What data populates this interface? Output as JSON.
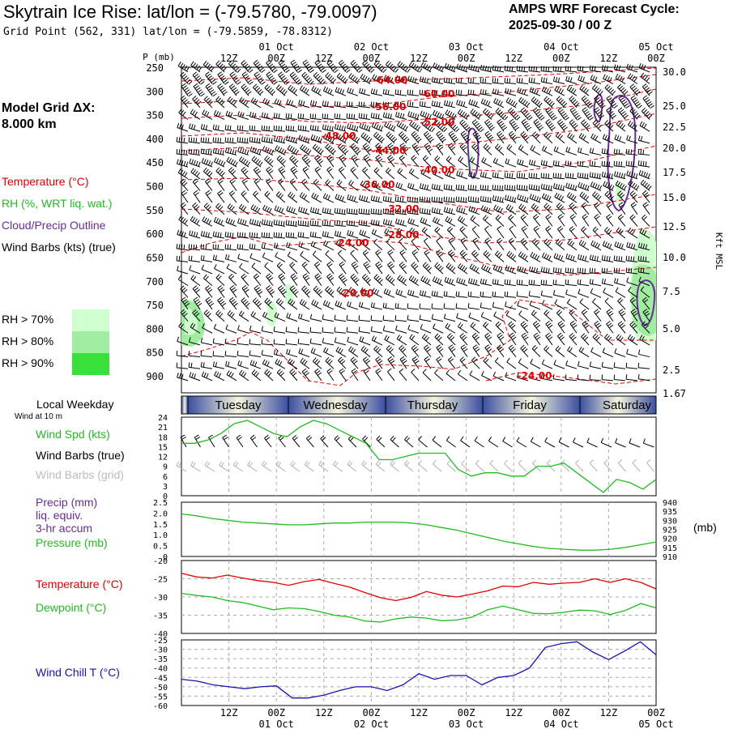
{
  "header": {
    "title": "Skytrain Ice Rise:  lat/lon = (-79.5780, -79.0097)",
    "subtitle": "Grid Point (562, 331) lat/lon = (-79.5859, -78.8312)",
    "cycle_line1": "AMPS WRF Forecast Cycle:",
    "cycle_line2": "2025-09-30 / 00  Z",
    "grid_line1": "Model Grid ΔX:",
    "grid_line2": " 8.000 km"
  },
  "legend": {
    "temperature": "Temperature (°C)",
    "rh": "RH (%, WRT liq. wat.)",
    "cloud": "Cloud/Precip Outline",
    "wind": "Wind Barbs (kts) (true)",
    "rh_levels": [
      {
        "label": "RH > 70%",
        "color": "#cfffcf"
      },
      {
        "label": "RH > 80%",
        "color": "#a0eca0"
      },
      {
        "label": "RH > 90%",
        "color": "#39e039"
      }
    ],
    "local_weekday": "Local Weekday",
    "wind_at_10m": "Wind at 10 m"
  },
  "colors": {
    "temperature": "#e00000",
    "rh": "#22bb22",
    "cloud": "#6a2a9a",
    "wind_chill": "#1515b0",
    "day_bar_dark": "#3b4fa0",
    "day_bar_light": "#f6f6dc"
  },
  "chart_data": [
    {
      "type": "line",
      "title": "Vertical cross-section (time-height)",
      "ylabel_left": "P (mb)",
      "ylabel_right": "Kft MSL",
      "p_ticks": [
        250,
        300,
        350,
        400,
        450,
        500,
        550,
        600,
        650,
        700,
        750,
        800,
        850,
        900
      ],
      "kft_ticks": [
        "30.0",
        "25.0",
        "22.5",
        "20.0",
        "17.5",
        "15.0",
        "12.5",
        "10.0",
        "7.5",
        "5.0",
        "2.5",
        "1.67"
      ],
      "x_ticks": [
        "12Z",
        "00Z",
        "12Z",
        "00Z",
        "12Z",
        "00Z",
        "12Z",
        "00Z",
        "12Z",
        "00Z"
      ],
      "date_ticks": [
        "01 Oct",
        "02 Oct",
        "03 Oct",
        "04 Oct",
        "05 Oct"
      ],
      "temperature_labels": [
        "-64.00",
        "-60.00",
        "-56.00",
        "-52.00",
        "-48.00",
        "-44.00",
        "-40.00",
        "-36.00",
        "-32.00",
        "-28.00",
        "-24.00",
        "-20.00",
        "-24.00"
      ]
    },
    {
      "type": "line",
      "title": "Wind at 10 m",
      "series_labels": [
        "Wind Spd (kts)",
        "Wind Barbs (true)",
        "Wind Barbs (grid)"
      ],
      "y_ticks": [
        24,
        21,
        18,
        15,
        12,
        9,
        6,
        3,
        0
      ],
      "ylim": [
        0,
        24
      ],
      "days": [
        "Tuesday",
        "Wednesday",
        "Thursday",
        "Friday",
        "Saturday"
      ],
      "wind_speed": [
        16,
        16,
        17,
        19,
        22,
        23,
        21,
        19,
        18,
        21,
        23,
        22,
        20,
        18,
        16,
        11,
        11,
        12,
        13,
        13,
        13,
        8,
        6,
        7,
        7,
        6,
        6,
        9,
        9,
        10,
        7,
        4,
        1,
        5,
        4,
        2,
        5
      ]
    },
    {
      "type": "line",
      "title": "Precip and Pressure",
      "series_labels": [
        "Precip (mm)",
        "liq. equiv.",
        "3-hr accum",
        "Pressure (mb)"
      ],
      "unit_right": "(mb)",
      "y_ticks_left": [
        "2.5",
        "2.0",
        "1.5",
        "1.0",
        "0.5",
        "0"
      ],
      "y_ticks_right": [
        "940",
        "935",
        "930",
        "925",
        "920",
        "915",
        "910"
      ],
      "ylim_right": [
        910,
        940
      ],
      "pressure": [
        933.5,
        932.5,
        931,
        930,
        929,
        928.5,
        928,
        927.5,
        927.5,
        928,
        928.5,
        928.5,
        929,
        929,
        929,
        928.5,
        927.5,
        926,
        924.5,
        922.5,
        920.5,
        918.5,
        917,
        915.5,
        914.5,
        914,
        913.5,
        913.5,
        914,
        915,
        916.5,
        918
      ]
    },
    {
      "type": "line",
      "title": "Temperature and Dewpoint",
      "series_labels": [
        "Temperature (°C)",
        "Dewpoint (°C)"
      ],
      "y_ticks": [
        -20,
        -25,
        -30,
        -35,
        -40
      ],
      "ylim": [
        -40,
        -20
      ],
      "temperature": [
        -23.5,
        -24.5,
        -24.8,
        -24,
        -24.8,
        -25.5,
        -26,
        -26.8,
        -25.8,
        -25.2,
        -26.3,
        -27.3,
        -28.8,
        -30.2,
        -31,
        -30.1,
        -28.5,
        -29.5,
        -30,
        -29.2,
        -28.3,
        -27,
        -27.2,
        -26,
        -26.5,
        -26.2,
        -26,
        -25,
        -26,
        -25,
        -26,
        -27.8
      ],
      "dewpoint": [
        -29,
        -29.6,
        -30,
        -31,
        -31.5,
        -32.5,
        -33.5,
        -33,
        -33.2,
        -34,
        -35,
        -35.5,
        -36.6,
        -36.9,
        -36,
        -35.5,
        -35.8,
        -36.5,
        -36.3,
        -35.5,
        -33.5,
        -32.5,
        -33.5,
        -34.5,
        -34.6,
        -34.2,
        -33.6,
        -33.8,
        -34.8,
        -33.7,
        -31.8,
        -33
      ]
    },
    {
      "type": "line",
      "title": "Wind Chill",
      "series_labels": [
        "Wind Chill T (°C)"
      ],
      "y_ticks": [
        -25,
        -30,
        -35,
        -40,
        -45,
        -50,
        -55,
        -60
      ],
      "ylim": [
        -60,
        -25
      ],
      "wind_chill": [
        -46,
        -47,
        -49,
        -50,
        -51,
        -50,
        -49.5,
        -56,
        -56,
        -54.5,
        -52,
        -50,
        -50,
        -52,
        -49,
        -43,
        -46,
        -44,
        -44,
        -49,
        -45,
        -44,
        -40,
        -29,
        -27,
        -26,
        -31.5,
        -35.5,
        -31,
        -26,
        -33
      ]
    }
  ]
}
